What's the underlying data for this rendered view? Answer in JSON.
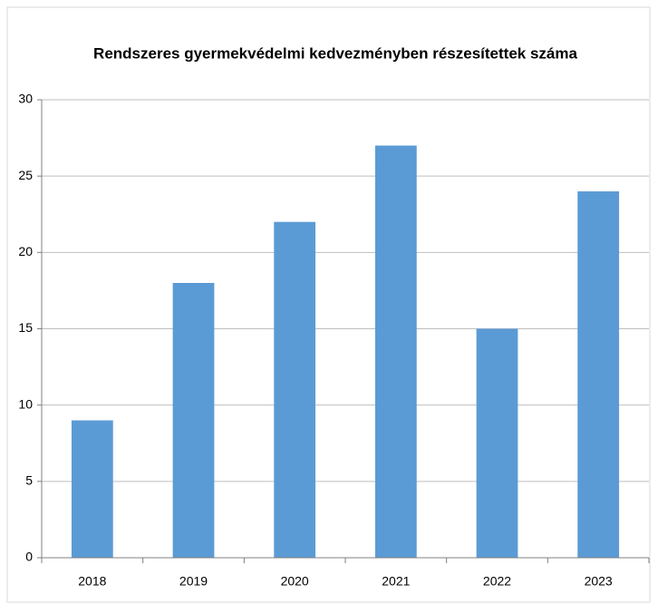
{
  "chart_data": {
    "type": "bar",
    "title": "Rendszeres gyermekvédelmi kedvezményben részesítettek száma",
    "categories": [
      "2018",
      "2019",
      "2020",
      "2021",
      "2022",
      "2023"
    ],
    "values": [
      9,
      18,
      22,
      27,
      15,
      24
    ],
    "color": "#5b9bd5",
    "ylim": [
      0,
      30
    ],
    "yticks": [
      0,
      5,
      10,
      15,
      20,
      25,
      30
    ],
    "grid": true
  }
}
